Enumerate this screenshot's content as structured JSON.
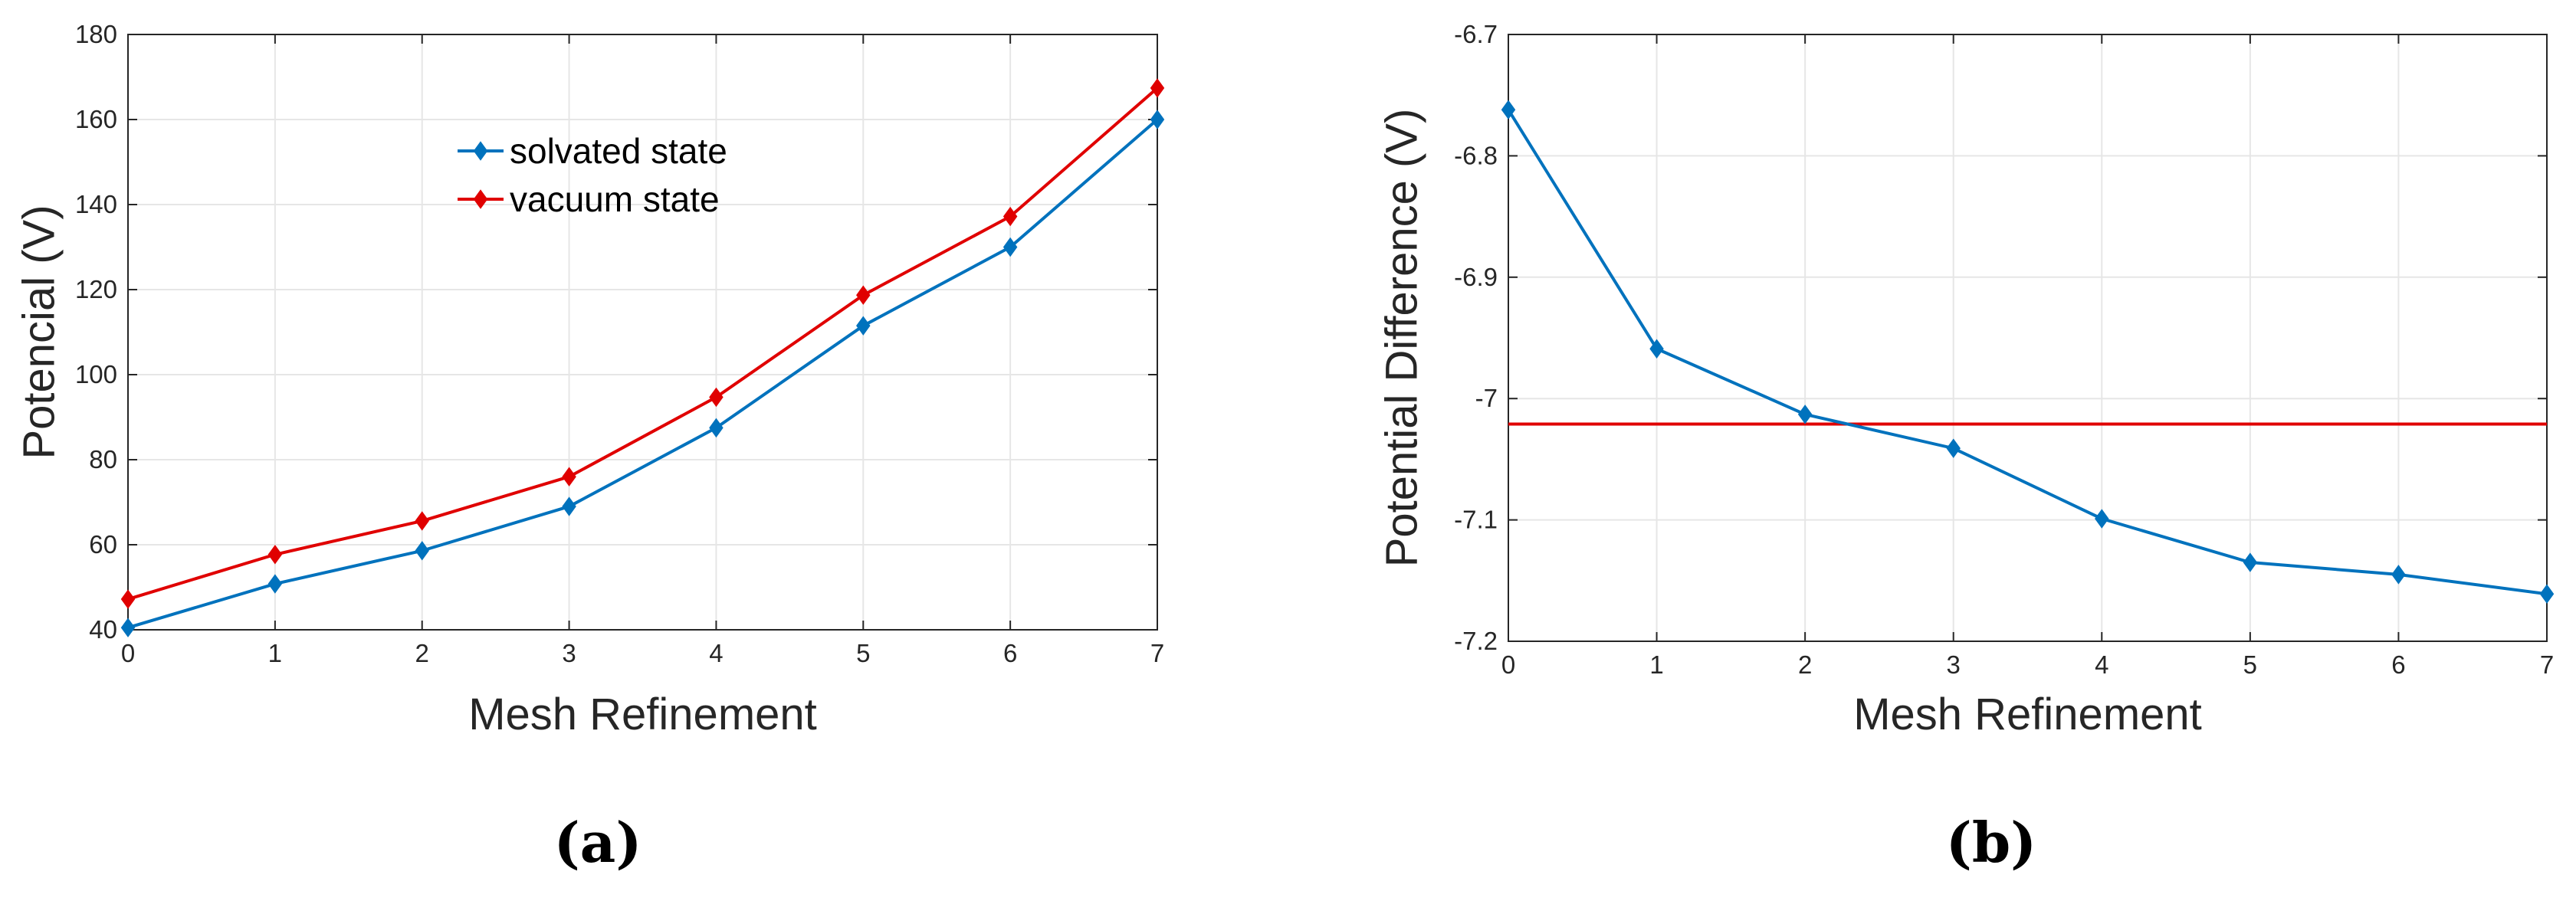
{
  "chart_data": [
    {
      "type": "line",
      "caption": "(a)",
      "xlabel": "Mesh Refinement",
      "ylabel": "Potencial (V)",
      "xlim": [
        0,
        7
      ],
      "ylim": [
        40,
        180
      ],
      "xticks": [
        "0",
        "1",
        "2",
        "3",
        "4",
        "5",
        "6",
        "7"
      ],
      "yticks": [
        "40",
        "60",
        "80",
        "100",
        "120",
        "140",
        "160",
        "180"
      ],
      "grid": true,
      "legend_position": "top-center",
      "x": [
        0,
        1,
        2,
        3,
        4,
        5,
        6,
        7
      ],
      "series": [
        {
          "name": "solvated state",
          "color": "#0072BD",
          "values": [
            40.5,
            50.8,
            58.6,
            69.0,
            87.5,
            111.5,
            130.0,
            160.0
          ]
        },
        {
          "name": "vacuum state",
          "color": "#E00000",
          "values": [
            47.2,
            57.7,
            65.6,
            76.0,
            94.7,
            118.7,
            137.2,
            167.4
          ]
        }
      ]
    },
    {
      "type": "line",
      "caption": "(b)",
      "xlabel": "Mesh Refinement",
      "ylabel": "Potential Difference (V)",
      "xlim": [
        0,
        7
      ],
      "ylim": [
        -7.2,
        -6.7
      ],
      "xticks": [
        "0",
        "1",
        "2",
        "3",
        "4",
        "5",
        "6",
        "7"
      ],
      "yticks": [
        "-7.2",
        "-7.1",
        "-7",
        "-6.9",
        "-6.8",
        "-6.7"
      ],
      "grid": true,
      "x": [
        0,
        1,
        2,
        3,
        4,
        5,
        6,
        7
      ],
      "series": [
        {
          "color": "#0072BD",
          "values": [
            -6.762,
            -6.959,
            -7.013,
            -7.041,
            -7.099,
            -7.135,
            -7.145,
            -7.161
          ]
        }
      ],
      "reference_line": {
        "y": -7.021,
        "color": "#E00000"
      }
    }
  ]
}
